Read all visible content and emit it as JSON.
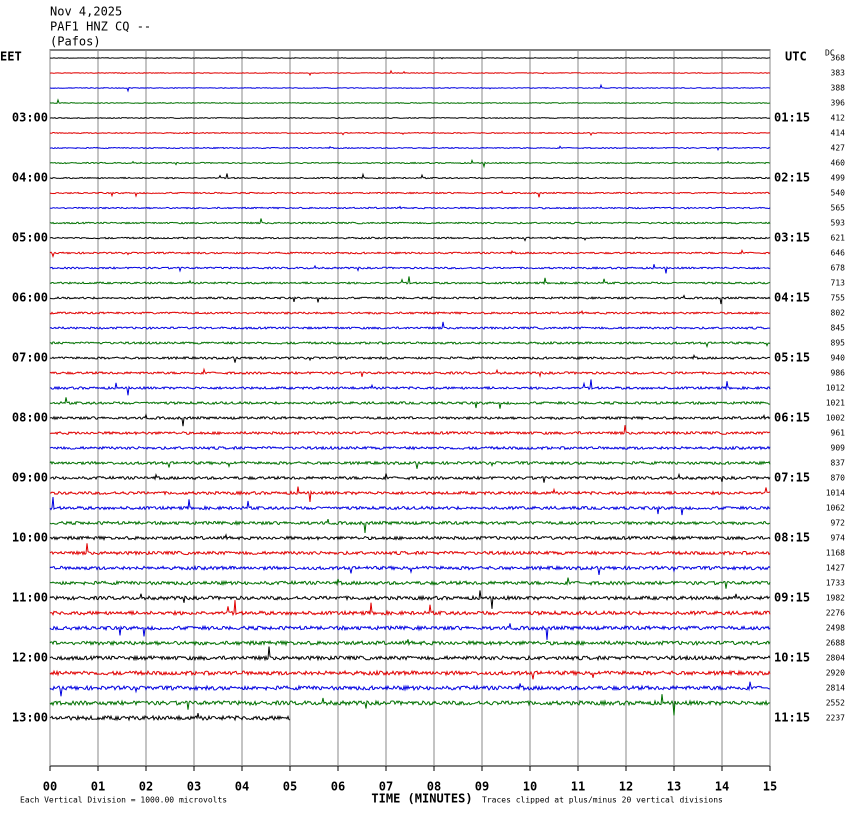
{
  "chart_data": {
    "type": "helicorder",
    "title": "Nov 4,2025",
    "subtitle": "PAF1 HNZ CQ --",
    "location": "(Pafos)",
    "left_zone": "EET",
    "right_zone": "UTC",
    "dc_header": "DC",
    "left_times": [
      "03:00",
      "04:00",
      "05:00",
      "06:00",
      "07:00",
      "08:00",
      "09:00",
      "10:00",
      "11:00",
      "12:00",
      "13:00"
    ],
    "right_times": [
      "01:15",
      "02:15",
      "03:15",
      "04:15",
      "05:15",
      "06:15",
      "07:15",
      "08:15",
      "09:15",
      "10:15",
      "11:15"
    ],
    "dc_values": [
      368,
      383,
      388,
      396,
      412,
      414,
      427,
      460,
      499,
      540,
      565,
      593,
      621,
      646,
      678,
      713,
      755,
      802,
      845,
      895,
      940,
      986,
      1012,
      1021,
      1002,
      961,
      909,
      837,
      870,
      1014,
      1062,
      972,
      974,
      1168,
      1427,
      1733,
      1982,
      2276,
      2498,
      2688,
      2804,
      2920,
      2814,
      2552,
      2237
    ],
    "trace_colors": [
      "#000000",
      "#e00000",
      "#0000e0",
      "#007000"
    ],
    "xlabel": "TIME (MINUTES)",
    "scale_note": "Each Vertical Division = 1000.00 microvolts",
    "clip_note": "Traces clipped at plus/minus 20 vertical divisions",
    "xlim": [
      0,
      15
    ],
    "xticks": [
      {
        "value": 0,
        "label": "00"
      },
      {
        "value": 1,
        "label": "01"
      },
      {
        "value": 2,
        "label": "02"
      },
      {
        "value": 3,
        "label": "03"
      },
      {
        "value": 4,
        "label": "04"
      },
      {
        "value": 5,
        "label": "05"
      },
      {
        "value": 6,
        "label": "06"
      },
      {
        "value": 7,
        "label": "07"
      },
      {
        "value": 8,
        "label": "08"
      },
      {
        "value": 9,
        "label": "09"
      },
      {
        "value": 10,
        "label": "10"
      },
      {
        "value": 11,
        "label": "11"
      },
      {
        "value": 12,
        "label": "12"
      },
      {
        "value": 13,
        "label": "13"
      },
      {
        "value": 14,
        "label": "14"
      },
      {
        "value": 15,
        "label": "15"
      }
    ],
    "grid": true
  }
}
